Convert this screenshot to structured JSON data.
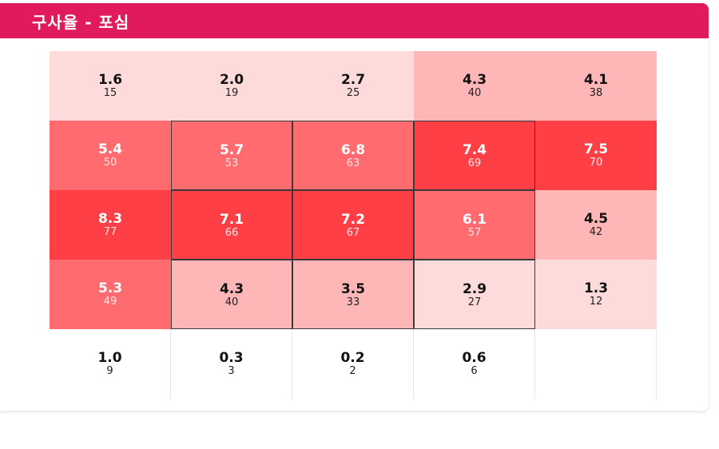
{
  "header": {
    "title": "구사율 - 포심"
  },
  "chart_data": {
    "type": "heatmap",
    "title": "구사율 - 포심",
    "rows": [
      [
        {
          "pct": "1.6",
          "count": "15",
          "color": "#fedbdb",
          "text": "dark"
        },
        {
          "pct": "2.0",
          "count": "19",
          "color": "#fedbdb",
          "text": "dark"
        },
        {
          "pct": "2.7",
          "count": "25",
          "color": "#fedbdb",
          "text": "dark"
        },
        {
          "pct": "4.3",
          "count": "40",
          "color": "#feb6b6",
          "text": "dark"
        },
        {
          "pct": "4.1",
          "count": "38",
          "color": "#feb6b6",
          "text": "dark"
        }
      ],
      [
        {
          "pct": "5.4",
          "count": "50",
          "color": "#ff6b6e",
          "text": "light"
        },
        {
          "pct": "5.7",
          "count": "53",
          "color": "#ff6b6e",
          "text": "light"
        },
        {
          "pct": "6.8",
          "count": "63",
          "color": "#ff6b6e",
          "text": "light"
        },
        {
          "pct": "7.4",
          "count": "69",
          "color": "#ff3f46",
          "text": "light"
        },
        {
          "pct": "7.5",
          "count": "70",
          "color": "#ff3f46",
          "text": "light"
        }
      ],
      [
        {
          "pct": "8.3",
          "count": "77",
          "color": "#ff3f46",
          "text": "light"
        },
        {
          "pct": "7.1",
          "count": "66",
          "color": "#ff3f46",
          "text": "light"
        },
        {
          "pct": "7.2",
          "count": "67",
          "color": "#ff3f46",
          "text": "light"
        },
        {
          "pct": "6.1",
          "count": "57",
          "color": "#ff6b6e",
          "text": "light"
        },
        {
          "pct": "4.5",
          "count": "42",
          "color": "#feb6b6",
          "text": "dark"
        }
      ],
      [
        {
          "pct": "5.3",
          "count": "49",
          "color": "#ff6b6e",
          "text": "light"
        },
        {
          "pct": "4.3",
          "count": "40",
          "color": "#feb6b6",
          "text": "dark"
        },
        {
          "pct": "3.5",
          "count": "33",
          "color": "#feb6b6",
          "text": "dark"
        },
        {
          "pct": "2.9",
          "count": "27",
          "color": "#fedbdb",
          "text": "dark"
        },
        {
          "pct": "1.3",
          "count": "12",
          "color": "#fedbdb",
          "text": "dark"
        }
      ],
      [
        {
          "pct": "1.0",
          "count": "9",
          "color": "#ffffff",
          "text": "dark"
        },
        {
          "pct": "0.3",
          "count": "3",
          "color": "#ffffff",
          "text": "dark"
        },
        {
          "pct": "0.2",
          "count": "2",
          "color": "#ffffff",
          "text": "dark"
        },
        {
          "pct": "0.6",
          "count": "6",
          "color": "#ffffff",
          "text": "dark"
        },
        {
          "pct": "",
          "count": "",
          "color": "#ffffff",
          "text": "dark"
        }
      ]
    ],
    "strike_zone": {
      "rows": [
        1,
        2,
        3
      ],
      "cols": [
        1,
        2,
        3
      ]
    }
  }
}
